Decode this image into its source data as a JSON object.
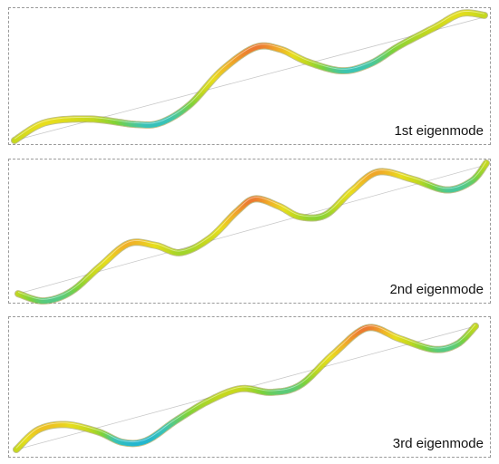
{
  "panels": [
    {
      "label": "1st eigenmode"
    },
    {
      "label": "2nd eigenmode"
    },
    {
      "label": "3rd eigenmode"
    }
  ],
  "colors": {
    "frame": "#9a9a9a",
    "reference_line": "#c8c8c8",
    "outline": "#8a8a2a",
    "colormap": [
      "#1fb4d2",
      "#3cc4b4",
      "#7cd23a",
      "#c4d81e",
      "#e8de1c",
      "#f0b226",
      "#ec7a30"
    ]
  }
}
